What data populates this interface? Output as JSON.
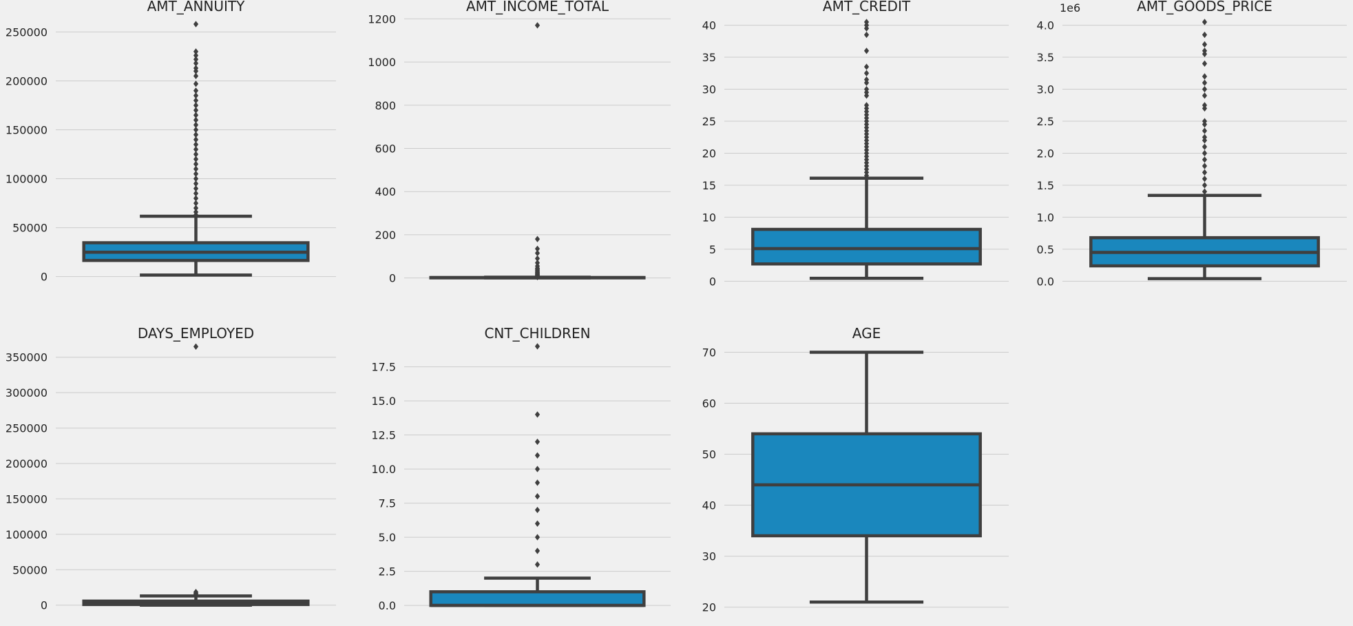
{
  "figure": {
    "background": "#f0f0f0",
    "box_color": "#1a87bd",
    "line_color": "#3f3f3f",
    "grid_color": "#cbcbcb"
  },
  "chart_data": [
    {
      "type": "box",
      "title": "AMT_ANNUITY",
      "ylim": [
        -8000,
        270000
      ],
      "yticks": [
        0,
        50000,
        100000,
        150000,
        200000,
        250000
      ],
      "tick_labels": [
        "0",
        "50000",
        "100000",
        "150000",
        "200000",
        "250000"
      ],
      "offset_label": "",
      "box": {
        "whisker_low": 1600,
        "q1": 16500,
        "median": 24900,
        "q3": 34600,
        "whisker_high": 61700
      },
      "outliers": [
        63000,
        66000,
        70000,
        75000,
        80000,
        85000,
        90000,
        95000,
        100000,
        105000,
        110000,
        115000,
        120000,
        125000,
        130000,
        135000,
        140000,
        145000,
        150000,
        155000,
        160000,
        165000,
        170000,
        175000,
        180000,
        185000,
        190000,
        197000,
        205000,
        210000,
        213000,
        218000,
        222000,
        226000,
        230000,
        258000
      ]
    },
    {
      "type": "box",
      "title": "AMT_INCOME_TOTAL",
      "ylim": [
        -30,
        1230
      ],
      "yticks": [
        0,
        200,
        400,
        600,
        800,
        1000,
        1200
      ],
      "tick_labels": [
        "0",
        "200",
        "400",
        "600",
        "800",
        "1000",
        "1200"
      ],
      "offset_label": "",
      "box": {
        "whisker_low": 0.3,
        "q1": 1.1,
        "median": 1.5,
        "q3": 2.0,
        "whisker_high": 3.4
      },
      "outliers": [
        4,
        5,
        6,
        8,
        10,
        12,
        15,
        18,
        22,
        25,
        30,
        35,
        40,
        45,
        55,
        70,
        90,
        115,
        135,
        180,
        1170
      ]
    },
    {
      "type": "box",
      "title": "AMT_CREDIT",
      "ylim": [
        -0.5,
        42
      ],
      "yticks": [
        0,
        5,
        10,
        15,
        20,
        25,
        30,
        35,
        40
      ],
      "tick_labels": [
        "0",
        "5",
        "10",
        "15",
        "20",
        "25",
        "30",
        "35",
        "40"
      ],
      "offset_label": "",
      "box": {
        "whisker_low": 0.45,
        "q1": 2.7,
        "median": 5.1,
        "q3": 8.1,
        "whisker_high": 16.1
      },
      "outliers": [
        16.5,
        17,
        17.5,
        18,
        18.5,
        19,
        19.5,
        20,
        20.5,
        21,
        21.5,
        22,
        22.5,
        23,
        23.5,
        24,
        24.5,
        25,
        25.5,
        26,
        26.5,
        27,
        27.5,
        29,
        29.5,
        30,
        31,
        31.5,
        32.5,
        33.5,
        36,
        38.5,
        39.5,
        40,
        40.5
      ]
    },
    {
      "type": "box",
      "title": "AMT_GOODS_PRICE",
      "ylim": [
        -0.05,
        4.2
      ],
      "yticks": [
        0,
        0.5,
        1,
        1.5,
        2,
        2.5,
        3,
        3.5,
        4
      ],
      "tick_labels": [
        "0.0",
        "0.5",
        "1.0",
        "1.5",
        "2.0",
        "2.5",
        "3.0",
        "3.5",
        "4.0"
      ],
      "offset_label": "1e6",
      "box": {
        "whisker_low": 0.04,
        "q1": 0.24,
        "median": 0.45,
        "q3": 0.68,
        "whisker_high": 1.34
      },
      "outliers": [
        1.4,
        1.5,
        1.6,
        1.7,
        1.8,
        1.9,
        2.0,
        2.1,
        2.2,
        2.25,
        2.35,
        2.45,
        2.5,
        2.7,
        2.75,
        2.9,
        3.0,
        3.1,
        3.2,
        3.4,
        3.55,
        3.6,
        3.7,
        3.85,
        4.05
      ]
    },
    {
      "type": "box",
      "title": "DAYS_EMPLOYED",
      "ylim": [
        -10000,
        375000
      ],
      "yticks": [
        0,
        50000,
        100000,
        150000,
        200000,
        250000,
        300000,
        350000
      ],
      "tick_labels": [
        "0",
        "50000",
        "100000",
        "150000",
        "200000",
        "250000",
        "300000",
        "350000"
      ],
      "offset_label": "",
      "box": {
        "whisker_low": 0,
        "q1": 900,
        "median": 2200,
        "q3": 5700,
        "whisker_high": 13000
      },
      "outliers": [
        14000,
        15500,
        17000,
        18500,
        365000
      ]
    },
    {
      "type": "box",
      "title": "CNT_CHILDREN",
      "ylim": [
        -0.5,
        19.5
      ],
      "yticks": [
        0,
        2.5,
        5,
        7.5,
        10,
        12.5,
        15,
        17.5
      ],
      "tick_labels": [
        "0.0",
        "2.5",
        "5.0",
        "7.5",
        "10.0",
        "12.5",
        "15.0",
        "17.5"
      ],
      "offset_label": "",
      "box": {
        "whisker_low": 0,
        "q1": 0,
        "median": 0,
        "q3": 1,
        "whisker_high": 2
      },
      "outliers": [
        3,
        4,
        5,
        6,
        7,
        8,
        9,
        10,
        11,
        12,
        14,
        19
      ]
    },
    {
      "type": "box",
      "title": "AGE",
      "ylim": [
        19,
        72.5
      ],
      "yticks": [
        20,
        30,
        40,
        50,
        60,
        70
      ],
      "tick_labels": [
        "20",
        "30",
        "40",
        "50",
        "60",
        "70"
      ],
      "offset_label": "",
      "box": {
        "whisker_low": 21,
        "q1": 34,
        "median": 44,
        "q3": 54,
        "whisker_high": 70
      },
      "outliers": []
    }
  ]
}
